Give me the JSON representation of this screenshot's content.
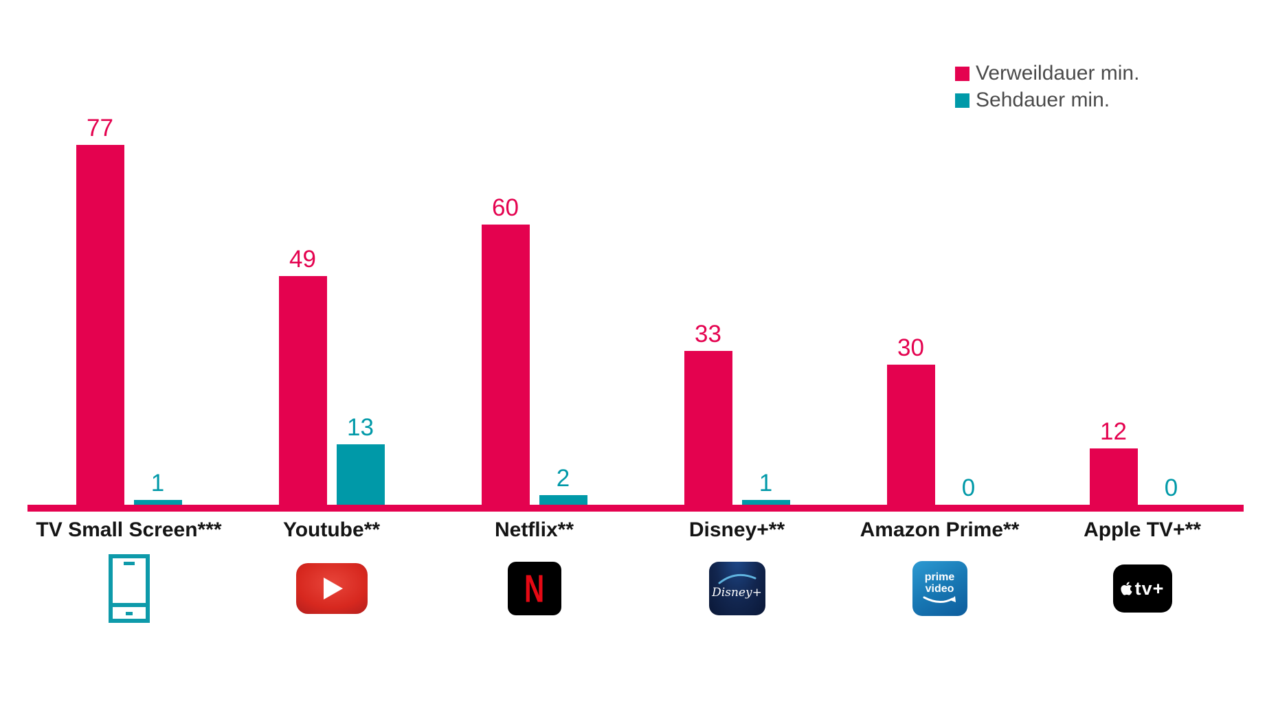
{
  "legend": {
    "items": [
      {
        "label": "Verweildauer min.",
        "color": "#E4024F"
      },
      {
        "label": "Sehdauer min.",
        "color": "#0099A8"
      }
    ],
    "text_color": "#4A4A4A"
  },
  "chart_data": {
    "type": "bar",
    "categories": [
      "TV Small Screen***",
      "Youtube**",
      "Netflix**",
      "Disney+**",
      "Amazon Prime**",
      "Apple TV+**"
    ],
    "series": [
      {
        "name": "Verweildauer min.",
        "color": "#E4024F",
        "values": [
          77,
          49,
          60,
          33,
          30,
          12
        ]
      },
      {
        "name": "Sehdauer min.",
        "color": "#0099A8",
        "values": [
          1,
          13,
          2,
          1,
          0,
          0
        ]
      }
    ],
    "ylim": [
      0,
      80
    ],
    "grid": false,
    "legend_position": "top-right",
    "baseline_color": "#E4024F",
    "value_labels": true
  },
  "icons": {
    "smartphone": {
      "color": "#0E9AAA"
    },
    "youtube": {
      "bg": "#D7281F"
    },
    "netflix": {
      "bg": "#000000",
      "letter": "N",
      "letter_color": "#E50914"
    },
    "disney": {
      "bg": "#0E1F47",
      "text": "Disney+",
      "text_color": "#FFFFFF",
      "arc_color": "#5FB3DF"
    },
    "prime": {
      "lines": [
        "prime",
        "video"
      ],
      "text_color": "#FFFFFF"
    },
    "apple": {
      "bg": "#000000",
      "text": "tv+",
      "text_color": "#FFFFFF"
    }
  }
}
